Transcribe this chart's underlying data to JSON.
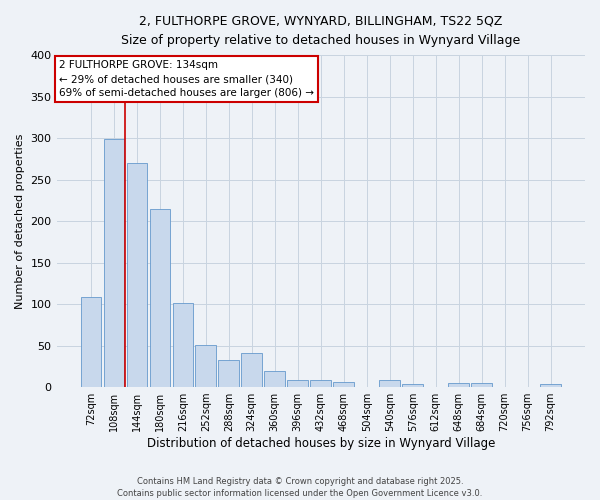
{
  "title": "2, FULTHORPE GROVE, WYNYARD, BILLINGHAM, TS22 5QZ",
  "subtitle": "Size of property relative to detached houses in Wynyard Village",
  "xlabel": "Distribution of detached houses by size in Wynyard Village",
  "ylabel": "Number of detached properties",
  "footer_line1": "Contains HM Land Registry data © Crown copyright and database right 2025.",
  "footer_line2": "Contains public sector information licensed under the Open Government Licence v3.0.",
  "categories": [
    "72sqm",
    "108sqm",
    "144sqm",
    "180sqm",
    "216sqm",
    "252sqm",
    "288sqm",
    "324sqm",
    "360sqm",
    "396sqm",
    "432sqm",
    "468sqm",
    "504sqm",
    "540sqm",
    "576sqm",
    "612sqm",
    "648sqm",
    "684sqm",
    "720sqm",
    "756sqm",
    "792sqm"
  ],
  "values": [
    109,
    299,
    270,
    214,
    101,
    51,
    33,
    41,
    19,
    8,
    8,
    6,
    0,
    8,
    4,
    0,
    5,
    5,
    0,
    0,
    4
  ],
  "bar_color": "#c8d8ec",
  "bar_edge_color": "#6699cc",
  "grid_color": "#c8d4e0",
  "background_color": "#eef2f7",
  "annotation_text": "2 FULTHORPE GROVE: 134sqm\n← 29% of detached houses are smaller (340)\n69% of semi-detached houses are larger (806) →",
  "annotation_box_color": "#ffffff",
  "annotation_box_edge": "#cc0000",
  "vline_x": 1.5,
  "vline_color": "#cc0000",
  "ylim": [
    0,
    400
  ],
  "yticks": [
    0,
    50,
    100,
    150,
    200,
    250,
    300,
    350,
    400
  ]
}
